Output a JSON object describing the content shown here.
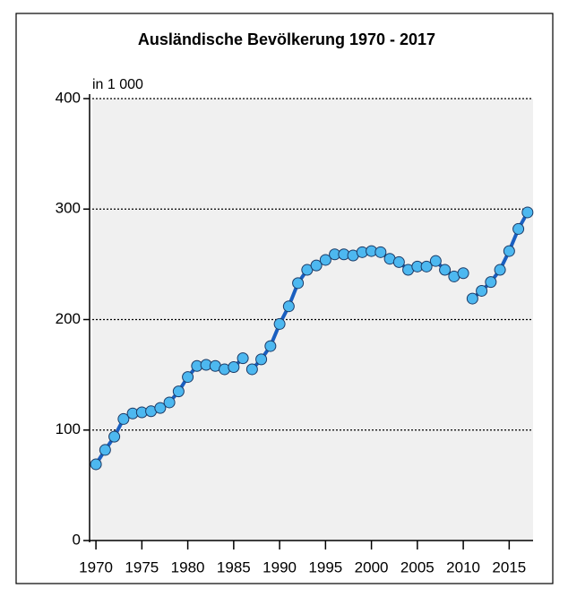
{
  "chart_data": {
    "type": "line",
    "title": "Ausländische Bevölkerung 1970 - 2017",
    "y_axis_label": "in 1 000",
    "series": [
      {
        "color": "#1a5fc0",
        "x": [
          1970,
          1971,
          1972,
          1973,
          1974,
          1975,
          1976,
          1977,
          1978,
          1979,
          1980,
          1981,
          1982,
          1983,
          1984,
          1985,
          1986
        ],
        "values": [
          69,
          82,
          94,
          110,
          115,
          116,
          117,
          120,
          125,
          135,
          148,
          158,
          159,
          158,
          155,
          157,
          165
        ]
      },
      {
        "color": "#1a5fc0",
        "x": [
          1987,
          1988,
          1989,
          1990,
          1991,
          1992,
          1993,
          1994,
          1995,
          1996,
          1997,
          1998,
          1999,
          2000,
          2001,
          2002,
          2003,
          2004,
          2005,
          2006,
          2007,
          2008,
          2009,
          2010
        ],
        "values": [
          155,
          164,
          176,
          196,
          212,
          233,
          245,
          249,
          254,
          259,
          259,
          258,
          261,
          262,
          261,
          255,
          252,
          245,
          248,
          248,
          253,
          245,
          239,
          242
        ]
      },
      {
        "color": "#1a5fc0",
        "x": [
          2011,
          2012,
          2013,
          2014,
          2015,
          2016,
          2017
        ],
        "values": [
          219,
          226,
          234,
          245,
          262,
          282,
          297
        ]
      }
    ],
    "marker_color": "#4db8f0",
    "xlim": [
      1969.6,
      2017.6
    ],
    "xticks": [
      1970,
      1975,
      1980,
      1985,
      1990,
      1995,
      2000,
      2005,
      2010,
      2015
    ],
    "ylim": [
      0,
      400
    ],
    "yticks": [
      0,
      100,
      200,
      300,
      400
    ],
    "grid": true
  }
}
